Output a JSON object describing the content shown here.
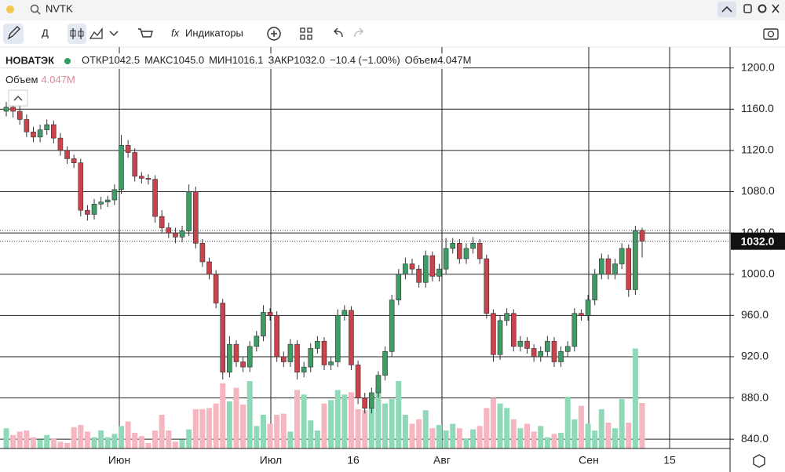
{
  "toolbar": {
    "search": "NVTK",
    "interval": "Д",
    "indicators": "Индикаторы"
  },
  "legend": {
    "name": "НОВАТЭК",
    "open_label": "ОТКР",
    "open": "1042.5",
    "high_label": "МАКС",
    "high": "1045.0",
    "low_label": "МИН",
    "low": "1016.1",
    "close_label": "ЗАКР",
    "close": "1032.0",
    "change": "−10.4 (−1.00%)",
    "volume_label": "Объем",
    "volume": "4.047M"
  },
  "chart_data": {
    "type": "candlestick",
    "up_color": "#3f9c66",
    "down_color": "#c9424c",
    "volume_up_color": "#8fd9b9",
    "volume_down_color": "#f5b6bf",
    "ylim": [
      831,
      1218
    ],
    "yticks": [
      {
        "value": 840,
        "label": "840.0"
      },
      {
        "value": 880,
        "label": "880.0"
      },
      {
        "value": 920,
        "label": "920.0"
      },
      {
        "value": 960,
        "label": "960.0"
      },
      {
        "value": 1000,
        "label": "1000.0"
      },
      {
        "value": 1040,
        "label": "1040.0"
      },
      {
        "value": 1080,
        "label": "1080.0"
      },
      {
        "value": 1120,
        "label": "1120.0"
      },
      {
        "value": 1160,
        "label": "1160.0"
      },
      {
        "value": 1200,
        "label": "1200.0"
      }
    ],
    "xtick_labels": [
      "Июн",
      "Июл",
      "16",
      "Авг",
      "Сен",
      "15"
    ],
    "open": [
      1158,
      1162,
      1158,
      1150,
      1138,
      1133,
      1140,
      1145,
      1132,
      1120,
      1112,
      1108,
      1062,
      1058,
      1068,
      1070,
      1072,
      1082,
      1125,
      1118,
      1095,
      1093,
      1092,
      1056,
      1045,
      1040,
      1036,
      1042,
      1080,
      1030,
      1012,
      1000,
      972,
      905,
      932,
      915,
      910,
      930,
      940,
      963,
      960,
      920,
      915,
      932,
      905,
      910,
      928,
      935,
      912,
      915,
      960,
      965,
      912,
      880,
      870,
      885,
      902,
      925,
      975,
      1000,
      1010,
      1005,
      992,
      1018,
      998,
      1005,
      1025,
      1030,
      1015,
      1025,
      1030,
      1015,
      962,
      922,
      955,
      962,
      930,
      935,
      928,
      920,
      925,
      935,
      915,
      925,
      930,
      962,
      960,
      975,
      1000,
      1015,
      1000,
      1010,
      1025,
      985,
      1042.5
    ],
    "high": [
      1167,
      1166,
      1163,
      1155,
      1143,
      1145,
      1150,
      1149,
      1137,
      1124,
      1116,
      1112,
      1067,
      1073,
      1075,
      1076,
      1087,
      1135,
      1130,
      1122,
      1099,
      1097,
      1096,
      1062,
      1050,
      1045,
      1047,
      1087,
      1085,
      1034,
      1016,
      1004,
      976,
      940,
      936,
      920,
      935,
      945,
      970,
      967,
      964,
      925,
      937,
      936,
      915,
      933,
      940,
      939,
      920,
      966,
      970,
      969,
      916,
      885,
      890,
      906,
      930,
      980,
      1005,
      1016,
      1015,
      1009,
      1023,
      1022,
      1010,
      1035,
      1035,
      1034,
      1030,
      1036,
      1034,
      1019,
      966,
      960,
      967,
      966,
      940,
      939,
      932,
      930,
      940,
      939,
      930,
      935,
      967,
      966,
      980,
      1005,
      1020,
      1019,
      1015,
      1030,
      1029,
      1047,
      1045
    ],
    "low": [
      1153,
      1152,
      1145,
      1133,
      1128,
      1128,
      1135,
      1127,
      1115,
      1107,
      1103,
      1056,
      1052,
      1053,
      1063,
      1065,
      1067,
      1078,
      1113,
      1090,
      1088,
      1087,
      1050,
      1040,
      1035,
      1030,
      1031,
      1037,
      1025,
      1007,
      995,
      967,
      898,
      900,
      910,
      905,
      905,
      925,
      935,
      955,
      915,
      910,
      910,
      898,
      900,
      905,
      923,
      907,
      907,
      910,
      955,
      907,
      874,
      865,
      865,
      880,
      897,
      920,
      970,
      995,
      1000,
      987,
      987,
      993,
      993,
      1000,
      1020,
      1010,
      1010,
      1020,
      1010,
      957,
      915,
      917,
      950,
      925,
      925,
      923,
      915,
      915,
      920,
      910,
      910,
      920,
      925,
      955,
      955,
      970,
      995,
      995,
      995,
      1005,
      978,
      980,
      1016.1
    ],
    "close": [
      1162,
      1158,
      1150,
      1138,
      1133,
      1140,
      1145,
      1132,
      1120,
      1112,
      1108,
      1062,
      1058,
      1068,
      1070,
      1072,
      1082,
      1125,
      1118,
      1095,
      1093,
      1092,
      1056,
      1045,
      1040,
      1036,
      1042,
      1080,
      1030,
      1012,
      1000,
      972,
      905,
      932,
      915,
      910,
      930,
      940,
      963,
      960,
      920,
      915,
      932,
      905,
      910,
      928,
      935,
      912,
      915,
      960,
      965,
      912,
      880,
      870,
      885,
      902,
      925,
      975,
      1000,
      1010,
      1005,
      992,
      1018,
      998,
      1005,
      1025,
      1030,
      1015,
      1025,
      1030,
      1015,
      962,
      922,
      955,
      962,
      930,
      935,
      928,
      920,
      925,
      935,
      915,
      925,
      930,
      962,
      960,
      975,
      1000,
      1015,
      1000,
      1010,
      1025,
      985,
      1042.4,
      1032
    ],
    "volume": [
      1.8,
      1.2,
      1.5,
      1.6,
      1.0,
      0.8,
      1.2,
      0.9,
      0.6,
      0.5,
      1.9,
      2.1,
      1.5,
      1.0,
      1.6,
      1.0,
      1.3,
      2.0,
      2.4,
      1.4,
      1.1,
      0.5,
      1.6,
      3.0,
      1.6,
      0.6,
      0.8,
      1.7,
      3.5,
      3.5,
      3.6,
      4.0,
      5.8,
      4.2,
      5.4,
      3.9,
      6.0,
      2.0,
      3.0,
      2.2,
      3.0,
      3.1,
      1.5,
      5.2,
      4.8,
      2.5,
      1.6,
      4.0,
      4.3,
      5.2,
      4.8,
      5.0,
      3.5,
      3.4,
      4.7,
      5.6,
      4.0,
      4.4,
      6.0,
      3.0,
      2.2,
      2.6,
      3.4,
      1.8,
      2.1,
      1.6,
      2.2,
      1.8,
      0.9,
      1.7,
      2.0,
      3.6,
      4.5,
      4.0,
      3.6,
      2.6,
      1.8,
      2.2,
      1.5,
      2.0,
      1.0,
      1.3,
      1.4,
      4.6,
      2.6,
      3.8,
      2.2,
      1.6,
      3.5,
      2.3,
      1.8,
      4.4,
      2.3,
      8.9,
      4.047
    ]
  }
}
